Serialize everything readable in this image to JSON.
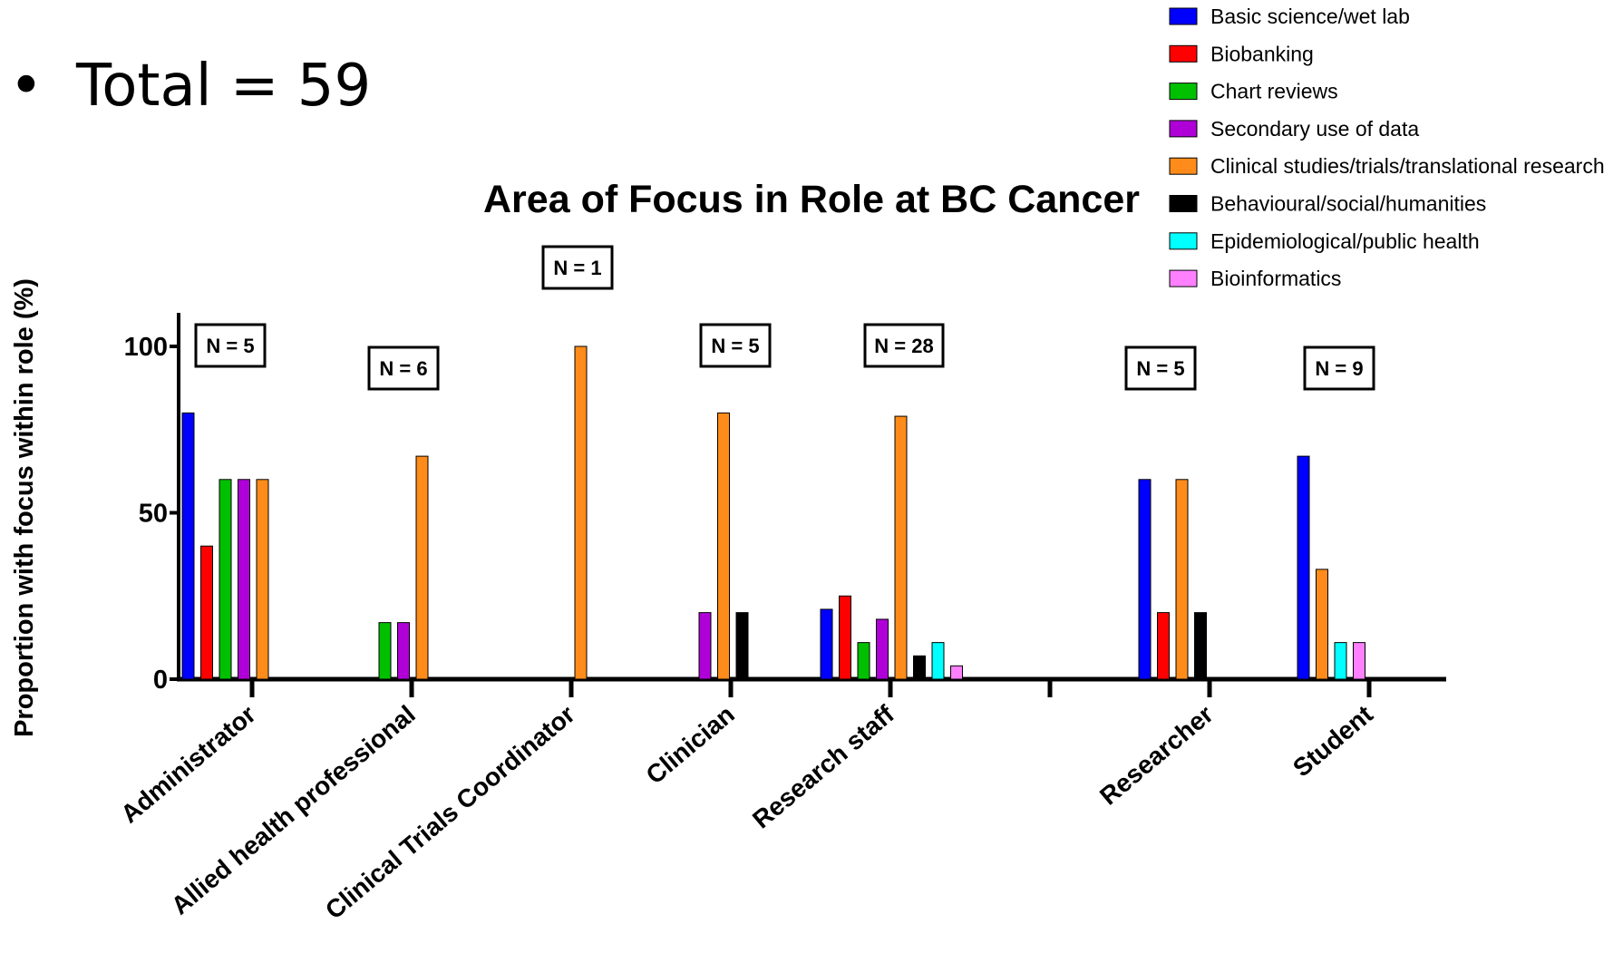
{
  "slide": {
    "bullet": "•",
    "total_text": "Total = 59"
  },
  "chart_data": {
    "type": "bar",
    "title": "Area of Focus in Role at BC Cancer",
    "ylabel": "Proportion with focus within role (%)",
    "xlabel": "",
    "ylim": [
      0,
      100
    ],
    "yticks": [
      0,
      50,
      100
    ],
    "grid": false,
    "legend_position": "top-right",
    "categories": [
      "Administrator",
      "Allied health professional",
      "Clinical Trials Coordinator",
      "Clinician",
      "Research staff",
      "",
      "Researcher",
      "Student"
    ],
    "n_labels": [
      "N = 5",
      "N = 6",
      "N = 1",
      "N = 5",
      "N = 28",
      "",
      "N = 5",
      "N = 9"
    ],
    "series": [
      {
        "name": "Basic science/wet lab",
        "color": "#0000FF",
        "values": [
          80,
          0,
          0,
          0,
          21,
          0,
          60,
          67
        ]
      },
      {
        "name": "Biobanking",
        "color": "#FF0000",
        "values": [
          40,
          0,
          0,
          0,
          25,
          0,
          20,
          0
        ]
      },
      {
        "name": "Chart reviews",
        "color": "#00C000",
        "values": [
          60,
          17,
          0,
          0,
          11,
          0,
          0,
          0
        ]
      },
      {
        "name": "Secondary use of data",
        "color": "#B000D8",
        "values": [
          60,
          17,
          0,
          20,
          18,
          0,
          0,
          0
        ]
      },
      {
        "name": "Clinical studies/trials/translational research",
        "color": "#FF8C1A",
        "values": [
          60,
          67,
          100,
          80,
          79,
          0,
          60,
          33
        ]
      },
      {
        "name": "Behavioural/social/humanities",
        "color": "#000000",
        "values": [
          0,
          0,
          0,
          20,
          7,
          0,
          20,
          0
        ]
      },
      {
        "name": "Epidemiological/public health",
        "color": "#00FFFF",
        "values": [
          0,
          0,
          0,
          0,
          11,
          0,
          0,
          11
        ]
      },
      {
        "name": "Bioinformatics",
        "color": "#FF80FF",
        "values": [
          0,
          0,
          0,
          0,
          4,
          0,
          0,
          11
        ]
      }
    ]
  }
}
